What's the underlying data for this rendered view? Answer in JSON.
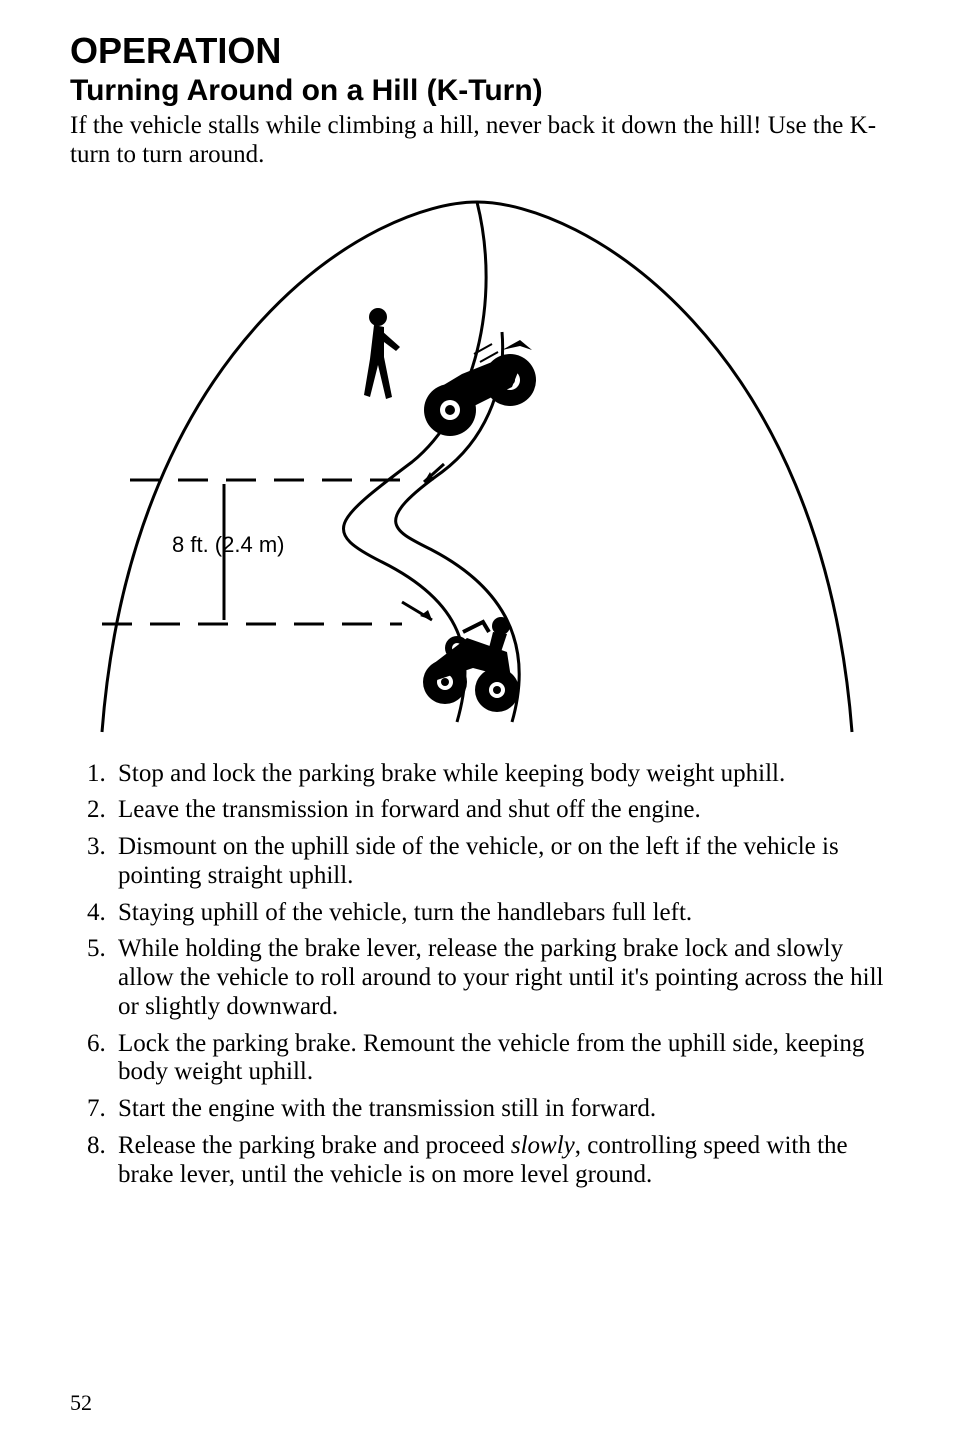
{
  "heading": "OPERATION",
  "subheading": "Turning Around on a Hill (K-Turn)",
  "intro": "If the vehicle stalls while climbing a hill, never back it down the hill! Use the K-turn to turn around.",
  "diagram": {
    "label": "8 ft. (2.4 m)",
    "label_fontfamily": "Arial, Helvetica, sans-serif",
    "label_fontsize": 22,
    "colors": {
      "stroke": "#000000",
      "fill_black": "#000000",
      "bg": "#ffffff"
    },
    "stroke_width_outline": 3,
    "stroke_width_dash": 3,
    "dash_pattern": "30 18"
  },
  "steps": [
    "Stop and lock the parking brake while keeping body weight uphill.",
    "Leave the transmission in forward and shut off the engine.",
    "Dismount on the uphill side of the vehicle, or on the left if the vehicle is pointing straight uphill.",
    "Staying uphill of the vehicle, turn the handlebars full left.",
    "While holding the brake lever, release the parking brake lock and slowly allow the vehicle to roll around to your right until it's pointing across the hill or slightly downward.",
    "Lock the parking brake. Remount the vehicle from the uphill side, keeping body weight uphill.",
    "Start the engine with the transmission still in forward.",
    "Release the parking brake and proceed <em>slowly</em>, controlling speed with the brake lever, until the vehicle is on more level ground."
  ],
  "page_number": "52"
}
